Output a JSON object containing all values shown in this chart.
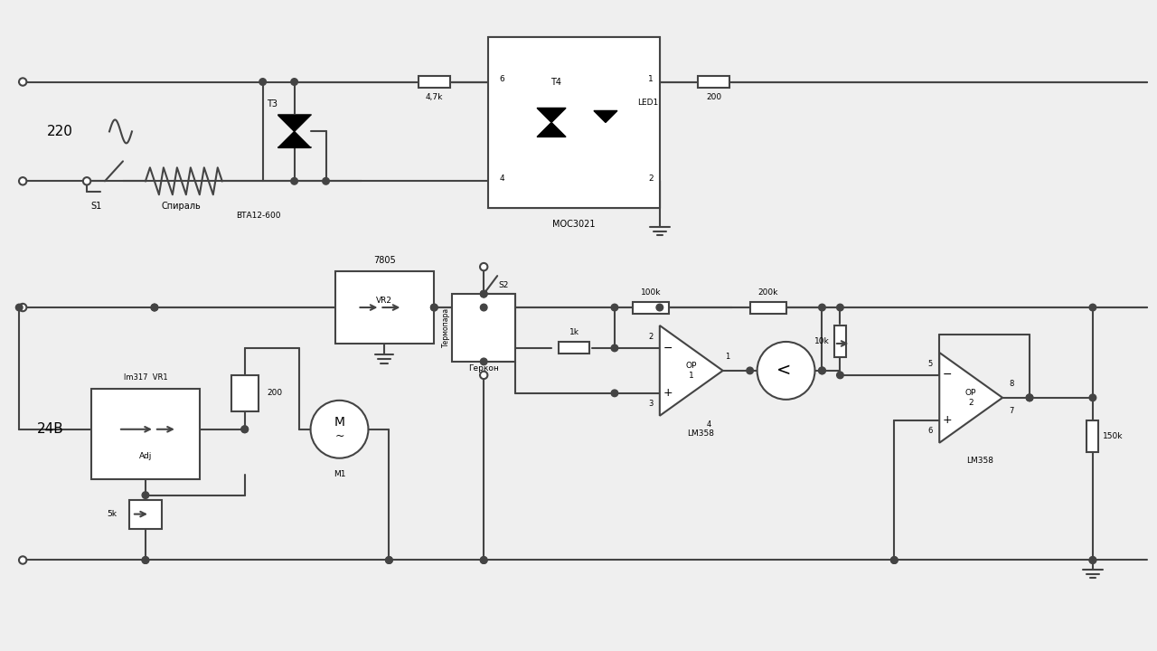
{
  "bg": "#efefef",
  "lc": "#444444",
  "lw": 1.5,
  "v220": "220",
  "v24": "24В",
  "S1": "S1",
  "spiral": "Спираль",
  "BTA12": "ВТА12-600",
  "T3": "T3",
  "T4": "T4",
  "LED1": "LED1",
  "MOC3021": "MOC3021",
  "r4k7": "4,7k",
  "r200t": "200",
  "r200m": "200",
  "r1k": "1k",
  "r100k": "100k",
  "r200k": "200k",
  "r10k": "10k",
  "r150k": "150k",
  "r5k": "5k",
  "VR2": "VR2",
  "v7805": "7805",
  "lm317_vr1": "lm317  VR1",
  "Adj": "Adj",
  "M1": "M1",
  "Gerkon": "Геркон",
  "S2": "S2",
  "Termopara": "Термопара",
  "OP1": "OP\n1",
  "OP2": "OP\n2",
  "LM358": "LM358"
}
